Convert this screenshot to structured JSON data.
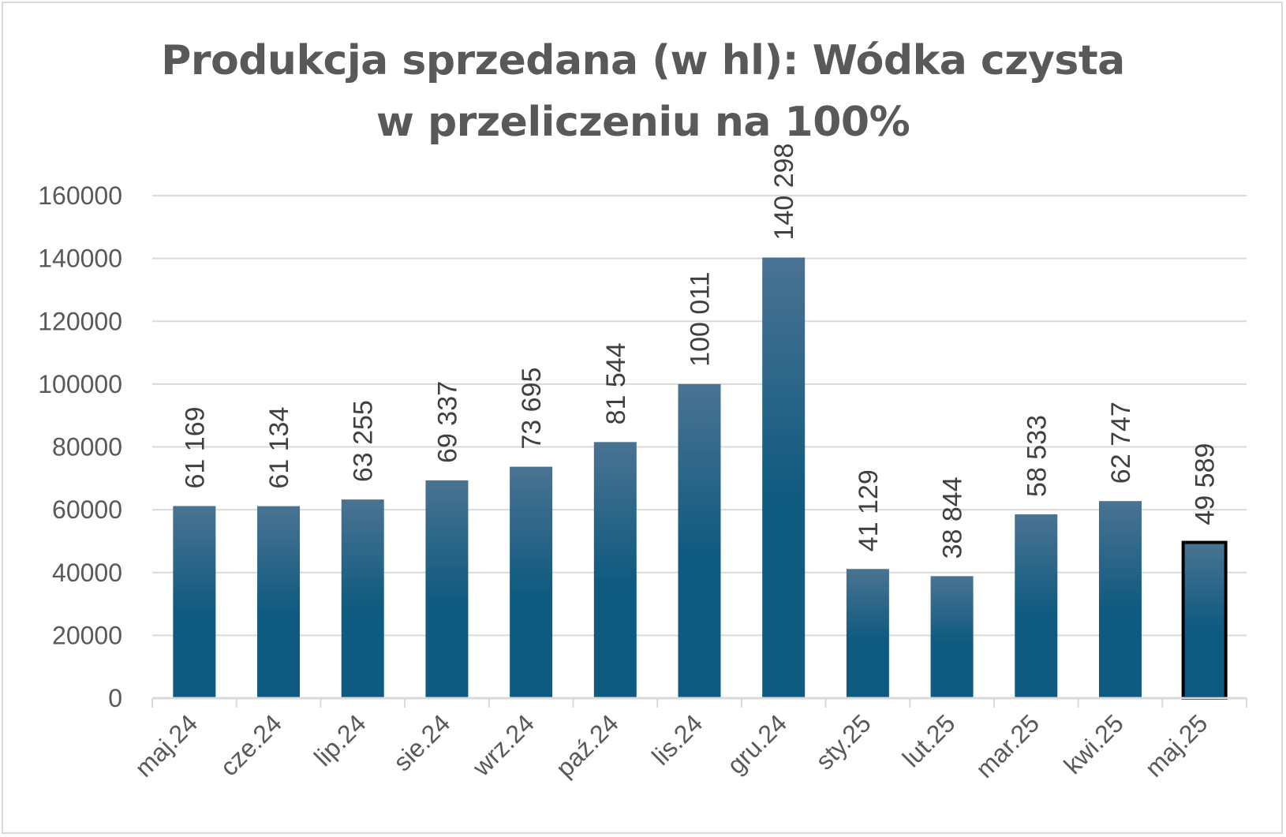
{
  "chart_data": {
    "type": "bar",
    "title_lines": [
      "Produkcja sprzedana (w hl): Wódka czysta",
      "w przeliczeniu na 100%"
    ],
    "categories": [
      "maj.24",
      "cze.24",
      "lip.24",
      "sie.24",
      "wrz.24",
      "paź.24",
      "lis.24",
      "gru.24",
      "sty.25",
      "lut.25",
      "mar.25",
      "kwi.25",
      "maj.25"
    ],
    "values": [
      61169,
      61134,
      63255,
      69337,
      73695,
      81544,
      100011,
      140298,
      41129,
      38844,
      58533,
      62747,
      49589
    ],
    "value_labels": [
      "61 169",
      "61 134",
      "63 255",
      "69 337",
      "73 695",
      "81 544",
      "100 011",
      "140 298",
      "41 129",
      "38 844",
      "58 533",
      "62 747",
      "49 589"
    ],
    "ylim": [
      0,
      160000
    ],
    "yticks": [
      0,
      20000,
      40000,
      60000,
      80000,
      100000,
      120000,
      140000,
      160000
    ],
    "ytick_labels": [
      "0",
      "20000",
      "40000",
      "60000",
      "80000",
      "100000",
      "120000",
      "140000",
      "160000"
    ],
    "grid": true,
    "highlighted_category": "maj.25",
    "colors": {
      "bar_top": "#4a7392",
      "bar_bottom": "#0f5a80",
      "grid": "#d9d9d9",
      "highlight_border": "#000000"
    }
  }
}
